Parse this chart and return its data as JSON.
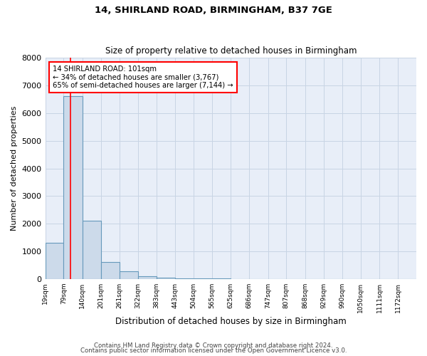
{
  "title1": "14, SHIRLAND ROAD, BIRMINGHAM, B37 7GE",
  "title2": "Size of property relative to detached houses in Birmingham",
  "xlabel": "Distribution of detached houses by size in Birmingham",
  "ylabel": "Number of detached properties",
  "bar_color": "#ccdaea",
  "bar_edge_color": "#6699bb",
  "red_line_x": 101,
  "annotation_title": "14 SHIRLAND ROAD: 101sqm",
  "annotation_line1": "← 34% of detached houses are smaller (3,767)",
  "annotation_line2": "65% of semi-detached houses are larger (7,144) →",
  "footer1": "Contains HM Land Registry data © Crown copyright and database right 2024.",
  "footer2": "Contains public sector information licensed under the Open Government Licence v3.0.",
  "bin_edges": [
    19,
    79,
    140,
    201,
    261,
    322,
    383,
    443,
    504,
    565,
    625,
    686,
    747,
    807,
    868,
    929,
    990,
    1050,
    1111,
    1172,
    1232
  ],
  "bar_heights": [
    1300,
    6600,
    2100,
    620,
    280,
    100,
    60,
    35,
    20,
    12,
    7,
    4,
    3,
    2,
    1,
    1,
    0,
    0,
    0,
    0
  ],
  "ylim": [
    0,
    8000
  ],
  "yticks": [
    0,
    1000,
    2000,
    3000,
    4000,
    5000,
    6000,
    7000,
    8000
  ],
  "grid_color": "#c8d4e4",
  "background_color": "#e8eef8"
}
